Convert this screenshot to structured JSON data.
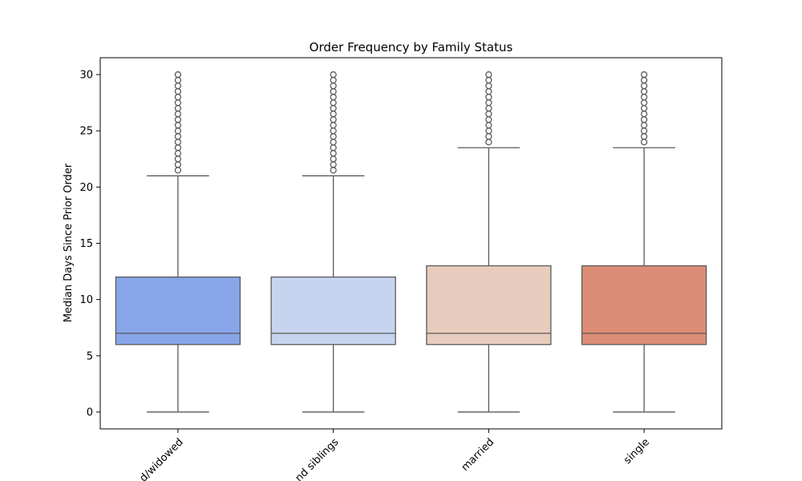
{
  "chart_data": {
    "type": "box",
    "title": "Order Frequency by Family Status",
    "xlabel": "",
    "ylabel": "Median Days Since Prior Order",
    "ylim": [
      -1.5,
      31.5
    ],
    "yticks": [
      0,
      5,
      10,
      15,
      20,
      25,
      30
    ],
    "grid": false,
    "categories": [
      "divorced/widowed",
      "living with parents and siblings",
      "married",
      "single"
    ],
    "visible_tick_text": [
      "d/widowed",
      "nd siblings",
      "married",
      "single"
    ],
    "boxes": [
      {
        "category": "divorced/widowed",
        "color": "#88a5e9",
        "whisker_low": 0,
        "q1": 6,
        "median": 7,
        "q3": 12,
        "whisker_high": 21,
        "outliers": [
          21.5,
          22,
          22.5,
          23,
          23.5,
          24,
          24.5,
          25,
          25.5,
          26,
          26.5,
          27,
          27.5,
          28,
          28.5,
          29,
          29.5,
          30
        ]
      },
      {
        "category": "living with parents and siblings",
        "color": "#c6d4ef",
        "whisker_low": 0,
        "q1": 6,
        "median": 7,
        "q3": 12,
        "whisker_high": 21,
        "outliers": [
          21.5,
          22,
          22.5,
          23,
          23.5,
          24,
          24.5,
          25,
          25.5,
          26,
          26.5,
          27,
          27.5,
          28,
          28.5,
          29,
          29.5,
          30
        ]
      },
      {
        "category": "married",
        "color": "#e8ccbd",
        "whisker_low": 0,
        "q1": 6,
        "median": 7,
        "q3": 13,
        "whisker_high": 23.5,
        "outliers": [
          24,
          24.5,
          25,
          25.5,
          26,
          26.5,
          27,
          27.5,
          28,
          28.5,
          29,
          29.5,
          30
        ]
      },
      {
        "category": "single",
        "color": "#dd8c76",
        "whisker_low": 0,
        "q1": 6,
        "median": 7,
        "q3": 13,
        "whisker_high": 23.5,
        "outliers": [
          24,
          24.5,
          25,
          25.5,
          26,
          26.5,
          27,
          27.5,
          28,
          28.5,
          29,
          29.5,
          30
        ]
      }
    ],
    "colors": {
      "line": "#5a5a5a",
      "axis": "#000000"
    }
  }
}
